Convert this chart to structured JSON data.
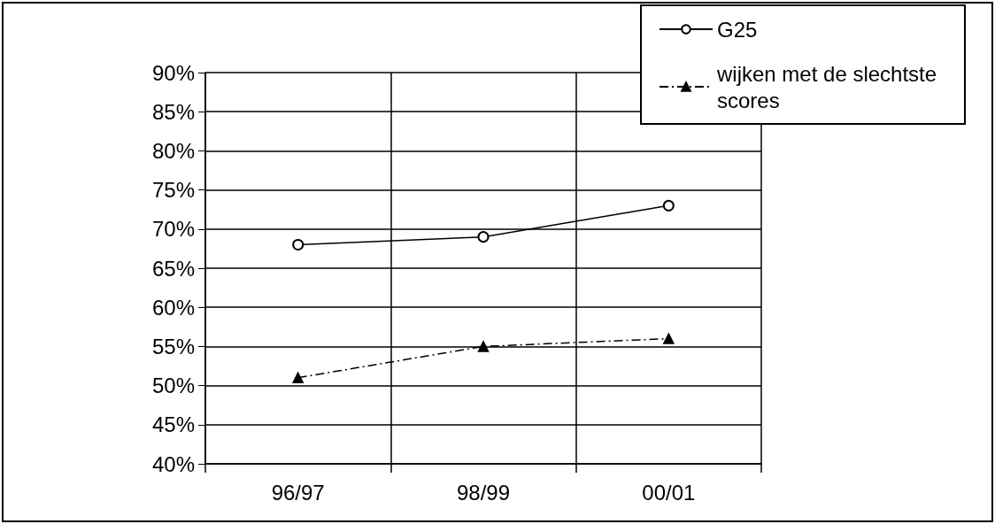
{
  "chart_data": {
    "type": "line",
    "categories": [
      "96/97",
      "98/99",
      "00/01"
    ],
    "series": [
      {
        "name": "G25",
        "color": "#000000",
        "values": [
          68,
          69,
          73
        ],
        "marker": "circle",
        "line_style": "solid"
      },
      {
        "name": "wijken met de slechtste scores",
        "color": "#000000",
        "values": [
          51,
          55,
          56
        ],
        "marker": "triangle",
        "line_style": "dashed"
      }
    ],
    "ylim": [
      40,
      90
    ],
    "yticks": [
      {
        "value": 40,
        "label": "40%"
      },
      {
        "value": 45,
        "label": "45%"
      },
      {
        "value": 50,
        "label": "50%"
      },
      {
        "value": 55,
        "label": "55%"
      },
      {
        "value": 60,
        "label": "60%"
      },
      {
        "value": 65,
        "label": "65%"
      },
      {
        "value": 70,
        "label": "70%"
      },
      {
        "value": 75,
        "label": "75%"
      },
      {
        "value": 80,
        "label": "80%"
      },
      {
        "value": 85,
        "label": "85%"
      },
      {
        "value": 90,
        "label": "90%"
      }
    ],
    "grid": true,
    "legend": "top right"
  }
}
